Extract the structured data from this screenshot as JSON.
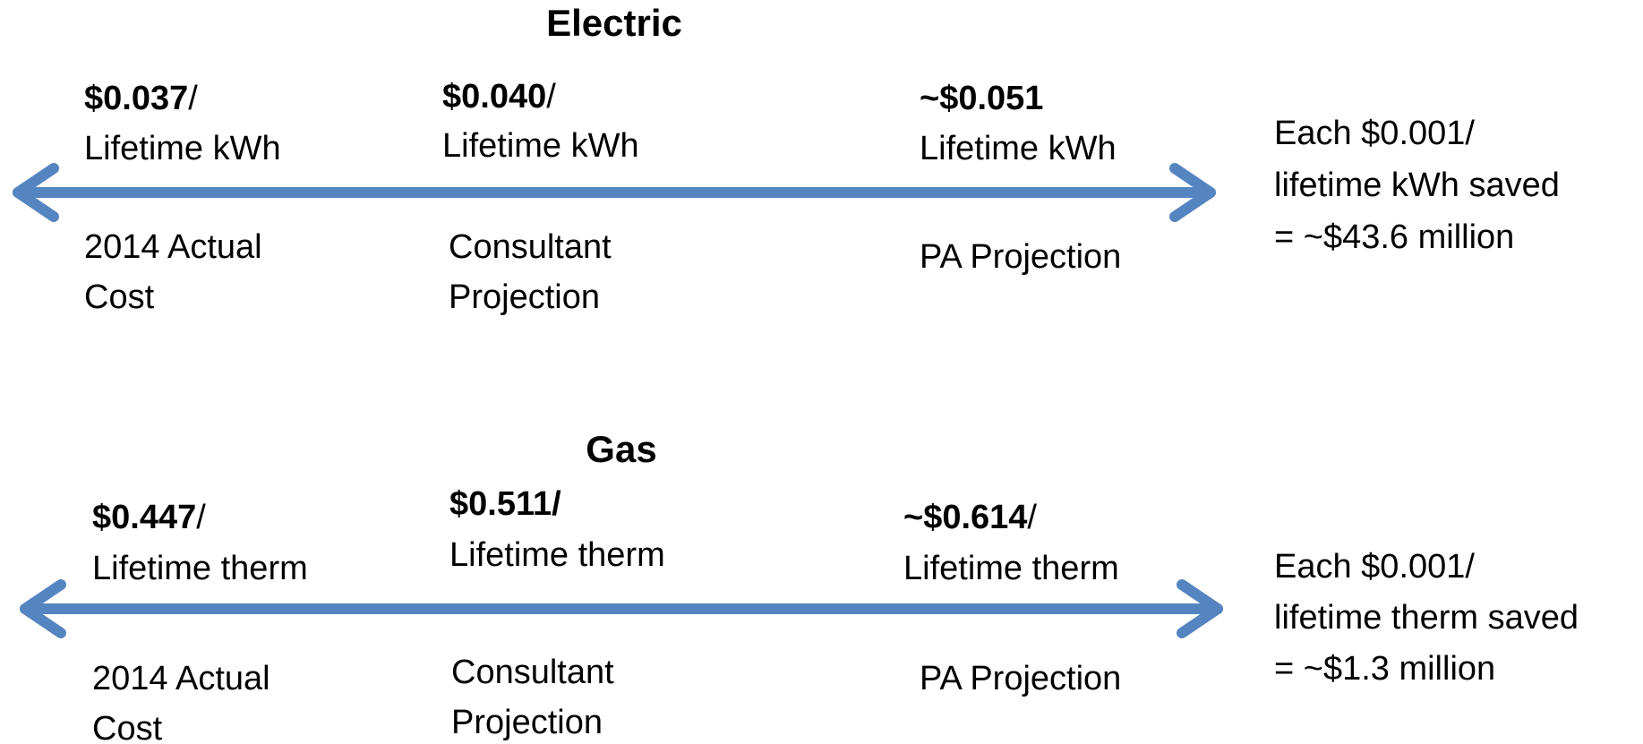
{
  "sections": [
    {
      "title": "Electric",
      "points": [
        {
          "price": "$0.037",
          "suffix": "/",
          "unit": "Lifetime kWh",
          "label_lines": [
            "2014  Actual",
            "Cost"
          ]
        },
        {
          "price": "$0.040",
          "suffix": "/",
          "unit": "Lifetime kWh",
          "label_lines": [
            "Consultant",
            "Projection"
          ]
        },
        {
          "price": "~$0.051",
          "unit": "Lifetime kWh",
          "label_lines": [
            "PA  Projection"
          ]
        }
      ],
      "note_lines": [
        "Each $0.001/",
        "lifetime kWh saved",
        "= ~$43.6  million"
      ]
    },
    {
      "title": "Gas",
      "points": [
        {
          "price": "$0.447",
          "suffix": "/",
          "unit": "Lifetime therm",
          "label_lines": [
            "2014 Actual",
            "Cost"
          ]
        },
        {
          "price": "$0.511/",
          "unit": "Lifetime therm",
          "label_lines": [
            "Consultant",
            "Projection"
          ]
        },
        {
          "price": "~$0.614",
          "suffix": "/",
          "unit": "Lifetime therm",
          "label_lines": [
            "PA Projection"
          ]
        }
      ],
      "note_lines": [
        "Each $0.001/",
        "lifetime therm saved",
        "= ~$1.3  million"
      ]
    }
  ]
}
